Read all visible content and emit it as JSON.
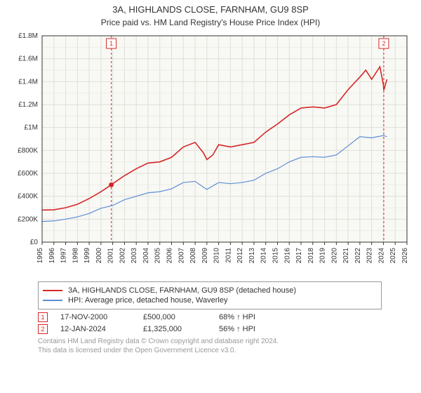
{
  "title": {
    "main": "3A, HIGHLANDS CLOSE, FARNHAM, GU9 8SP",
    "sub": "Price paid vs. HM Land Registry's House Price Index (HPI)"
  },
  "chart": {
    "type": "line",
    "background_color": "#f5f5f0",
    "plot_background": "#f8f8f4",
    "grid_color": "#e0e0d8",
    "minor_grid_color": "#eeeee8",
    "axis_color": "#333333",
    "years": [
      1995,
      1996,
      1997,
      1998,
      1999,
      2000,
      2001,
      2002,
      2003,
      2004,
      2005,
      2006,
      2007,
      2008,
      2009,
      2010,
      2011,
      2012,
      2013,
      2014,
      2015,
      2016,
      2017,
      2018,
      2019,
      2020,
      2021,
      2022,
      2023,
      2024,
      2025,
      2026
    ],
    "ylim": [
      0,
      1800000
    ],
    "ytick_step": 200000,
    "yticks": [
      "£0",
      "£200K",
      "£400K",
      "£600K",
      "£800K",
      "£1M",
      "£1.2M",
      "£1.4M",
      "£1.6M",
      "£1.8M"
    ],
    "marker_lines": [
      {
        "label": "1",
        "year": 2000.88,
        "color": "#d62728",
        "dash": "3,3"
      },
      {
        "label": "2",
        "year": 2024.03,
        "color": "#d62728",
        "dash": "3,3"
      }
    ],
    "marker_point": {
      "year": 2000.88,
      "value": 500000,
      "color": "#d62728"
    },
    "series": [
      {
        "name": "property",
        "label": "3A, HIGHLANDS CLOSE, FARNHAM, GU9 8SP (detached house)",
        "color": "#d62728",
        "width": 1.6,
        "data": [
          [
            1995,
            280000
          ],
          [
            1996,
            282000
          ],
          [
            1997,
            300000
          ],
          [
            1998,
            330000
          ],
          [
            1999,
            380000
          ],
          [
            2000,
            440000
          ],
          [
            2000.88,
            500000
          ],
          [
            2001,
            510000
          ],
          [
            2002,
            580000
          ],
          [
            2003,
            640000
          ],
          [
            2004,
            690000
          ],
          [
            2005,
            700000
          ],
          [
            2006,
            740000
          ],
          [
            2007,
            830000
          ],
          [
            2008,
            870000
          ],
          [
            2008.7,
            780000
          ],
          [
            2009,
            720000
          ],
          [
            2009.5,
            760000
          ],
          [
            2010,
            850000
          ],
          [
            2011,
            830000
          ],
          [
            2012,
            850000
          ],
          [
            2013,
            870000
          ],
          [
            2014,
            960000
          ],
          [
            2015,
            1030000
          ],
          [
            2016,
            1110000
          ],
          [
            2017,
            1170000
          ],
          [
            2018,
            1180000
          ],
          [
            2019,
            1170000
          ],
          [
            2020,
            1200000
          ],
          [
            2021,
            1330000
          ],
          [
            2022,
            1440000
          ],
          [
            2022.5,
            1500000
          ],
          [
            2023,
            1420000
          ],
          [
            2023.7,
            1530000
          ],
          [
            2024,
            1370000
          ],
          [
            2024.03,
            1325000
          ],
          [
            2024.3,
            1420000
          ]
        ]
      },
      {
        "name": "hpi",
        "label": "HPI: Average price, detached house, Waverley",
        "color": "#5b8fd6",
        "width": 1.2,
        "data": [
          [
            1995,
            180000
          ],
          [
            1996,
            185000
          ],
          [
            1997,
            200000
          ],
          [
            1998,
            220000
          ],
          [
            1999,
            250000
          ],
          [
            2000,
            295000
          ],
          [
            2001,
            320000
          ],
          [
            2002,
            370000
          ],
          [
            2003,
            400000
          ],
          [
            2004,
            430000
          ],
          [
            2005,
            440000
          ],
          [
            2006,
            465000
          ],
          [
            2007,
            520000
          ],
          [
            2008,
            530000
          ],
          [
            2008.7,
            480000
          ],
          [
            2009,
            460000
          ],
          [
            2010,
            520000
          ],
          [
            2011,
            510000
          ],
          [
            2012,
            520000
          ],
          [
            2013,
            540000
          ],
          [
            2014,
            600000
          ],
          [
            2015,
            640000
          ],
          [
            2016,
            700000
          ],
          [
            2017,
            740000
          ],
          [
            2018,
            745000
          ],
          [
            2019,
            740000
          ],
          [
            2020,
            760000
          ],
          [
            2021,
            840000
          ],
          [
            2022,
            920000
          ],
          [
            2023,
            910000
          ],
          [
            2024,
            930000
          ],
          [
            2024.3,
            920000
          ]
        ]
      }
    ]
  },
  "legend": {
    "series1_color": "#d62728",
    "series1_label": "3A, HIGHLANDS CLOSE, FARNHAM, GU9 8SP (detached house)",
    "series2_color": "#5b8fd6",
    "series2_label": "HPI: Average price, detached house, Waverley"
  },
  "markers": [
    {
      "num": "1",
      "date": "17-NOV-2000",
      "price": "£500,000",
      "pct": "68% ↑ HPI"
    },
    {
      "num": "2",
      "date": "12-JAN-2024",
      "price": "£1,325,000",
      "pct": "56% ↑ HPI"
    }
  ],
  "footer": {
    "line1": "Contains HM Land Registry data © Crown copyright and database right 2024.",
    "line2": "This data is licensed under the Open Government Licence v3.0."
  }
}
